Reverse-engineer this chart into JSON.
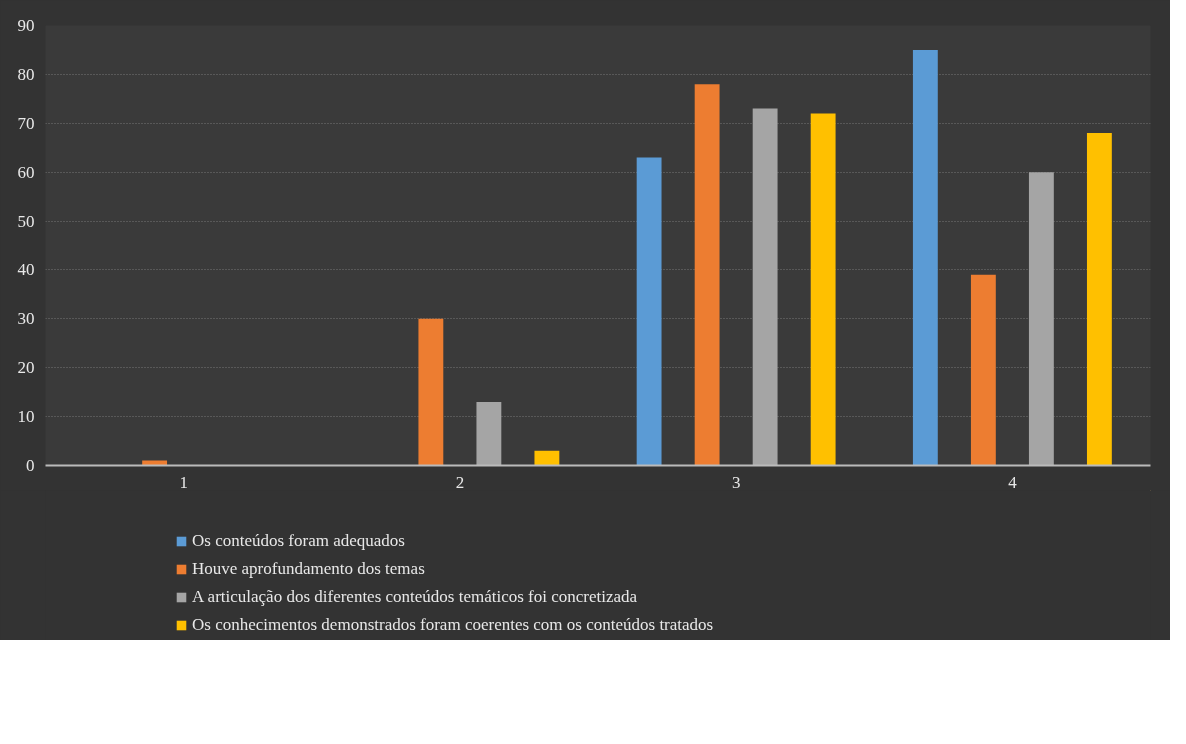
{
  "chart_data": {
    "type": "bar",
    "categories": [
      "1",
      "2",
      "3",
      "4"
    ],
    "series": [
      {
        "name": "Os conteúdos foram adequados",
        "color": "#5b9bd5",
        "values": [
          0,
          0,
          63,
          85
        ]
      },
      {
        "name": "Houve aprofundamento dos temas",
        "color": "#ed7d31",
        "values": [
          1,
          30,
          78,
          39
        ]
      },
      {
        "name": "A articulação dos diferentes conteúdos temáticos foi concretizada",
        "color": "#a5a5a5",
        "values": [
          0,
          13,
          73,
          60
        ]
      },
      {
        "name": "Os conhecimentos demonstrados foram coerentes com os conteúdos tratados",
        "color": "#ffc000",
        "values": [
          0,
          3,
          72,
          68
        ]
      }
    ],
    "ylim": [
      0,
      90
    ],
    "yticks": [
      0,
      10,
      20,
      30,
      40,
      50,
      60,
      70,
      80,
      90
    ],
    "grid": "y",
    "legend": "bottom"
  }
}
